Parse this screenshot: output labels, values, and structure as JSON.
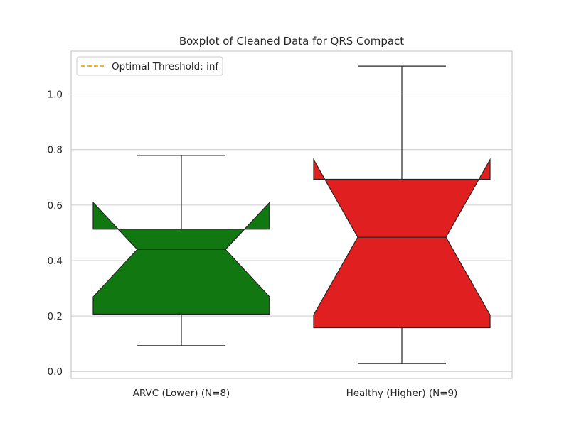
{
  "chart_data": {
    "type": "boxplot",
    "title": "Boxplot of Cleaned Data for QRS Compact",
    "xlabel": "",
    "ylabel": "",
    "categories": [
      "ARVC (Lower) (N=8)",
      "Healthy (Higher) (N=9)"
    ],
    "ylim": [
      -0.025,
      1.155
    ],
    "yticks": [
      0.0,
      0.2,
      0.4,
      0.6,
      0.8,
      1.0
    ],
    "ytick_labels": [
      "0.0",
      "0.2",
      "0.4",
      "0.6",
      "0.8",
      "1.0"
    ],
    "grid": true,
    "notched": true,
    "boxes": [
      {
        "category": "ARVC (Lower) (N=8)",
        "color": "#117711",
        "whisker_low": 0.093,
        "q1": 0.207,
        "median": 0.44,
        "q3": 0.513,
        "whisker_high": 0.779,
        "notch_low": 0.269,
        "notch_high": 0.609
      },
      {
        "category": "Healthy (Higher) (N=9)",
        "color": "#e02020",
        "whisker_low": 0.029,
        "q1": 0.158,
        "median": 0.484,
        "q3": 0.693,
        "whisker_high": 1.101,
        "notch_low": 0.204,
        "notch_high": 0.764
      }
    ],
    "legend": {
      "placement": "upper-left",
      "entries": [
        {
          "label": "Optimal Threshold: inf",
          "color": "#ffa500",
          "style": "dashed"
        }
      ]
    }
  }
}
